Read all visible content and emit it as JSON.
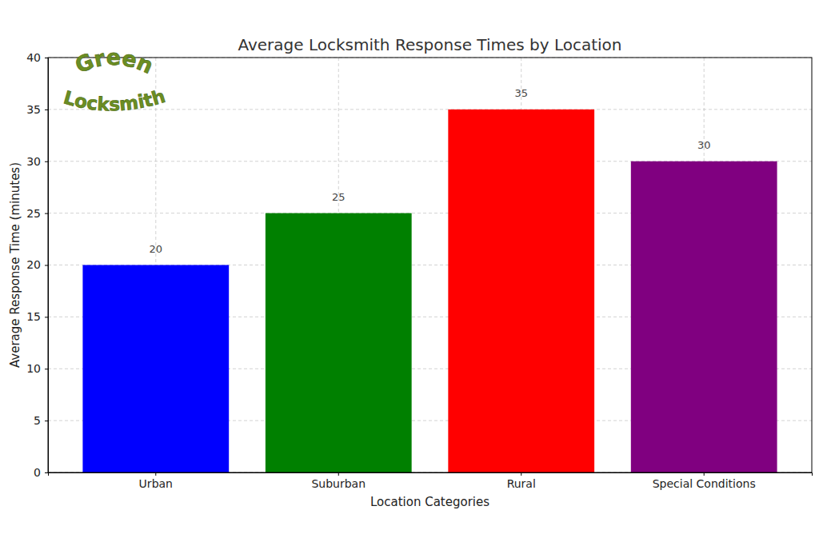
{
  "chart_data": {
    "type": "bar",
    "title": "Average Locksmith Response Times by Location",
    "x_label": "Location Categories",
    "y_label": "Average Response Time (minutes)",
    "categories": [
      "Urban",
      "Suburban",
      "Rural",
      "Special Conditions"
    ],
    "values": [
      20,
      25,
      35,
      30
    ],
    "colors": [
      "#0000ff",
      "#008000",
      "#ff0000",
      "#800080"
    ],
    "ylim": [
      0,
      40
    ],
    "yticks": [
      0,
      5,
      10,
      15,
      20,
      25,
      30,
      35,
      40
    ],
    "grid": true,
    "data_labels": true,
    "annotations": [
      "Green",
      "Locksmith"
    ]
  }
}
